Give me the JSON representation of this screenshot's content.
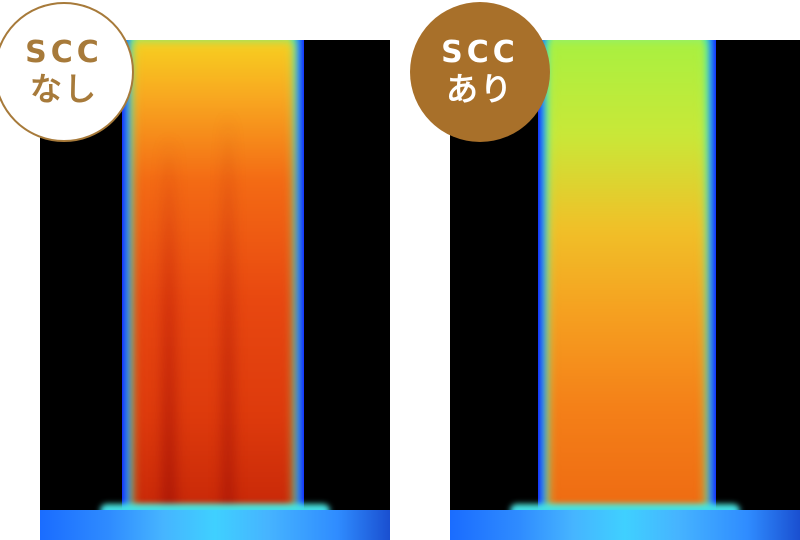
{
  "left": {
    "badge_line1": "SCC",
    "badge_line2": "なし",
    "badge_color": "#a77a3a"
  },
  "right": {
    "badge_line1": "SCC",
    "badge_line2": "あり",
    "badge_color": "#a8702a"
  }
}
